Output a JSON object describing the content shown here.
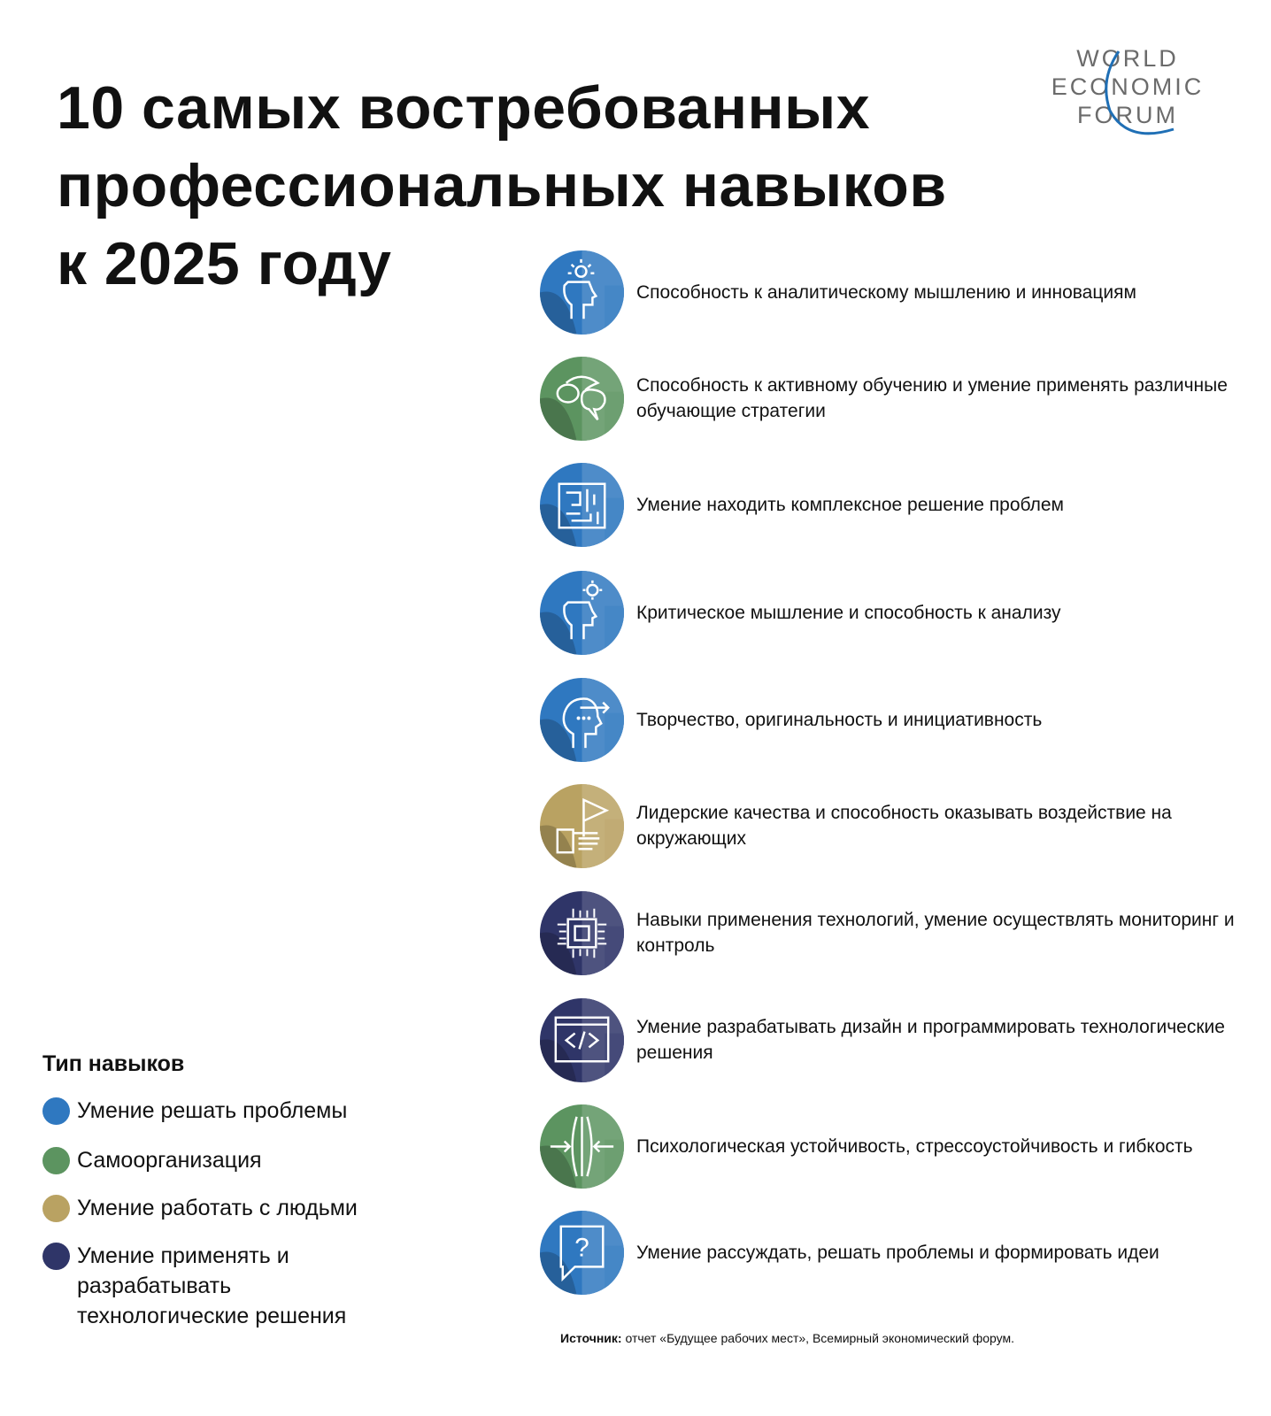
{
  "title": [
    "10 самых востребованных",
    "профессиональных навыков",
    "к 2025 году"
  ],
  "logo": {
    "lines": [
      "WORLD",
      "ECONOMIC",
      "FORUM"
    ]
  },
  "colors": {
    "problem_solving": "#2f78c0",
    "self_management": "#5c9460",
    "working_with_people": "#b9a262",
    "technology": "#2f3568"
  },
  "skills": [
    {
      "label": "Способность к аналитическому мышлению и инновациям",
      "type": "problem_solving",
      "icon": "head-lightbulb-icon"
    },
    {
      "label": "Способность к активному обучению и умение применять различные обучающие стратегии",
      "type": "self_management",
      "icon": "brain-speech-icon"
    },
    {
      "label": "Умение находить комплексное решение проблем",
      "type": "problem_solving",
      "icon": "maze-icon"
    },
    {
      "label": "Критическое мышление и способность к анализу",
      "type": "problem_solving",
      "icon": "head-gear-icon"
    },
    {
      "label": "Творчество, оригинальность и инициативность",
      "type": "problem_solving",
      "icon": "head-arrow-icon"
    },
    {
      "label": "Лидерские качества и способность оказывать воздействие на окружающих",
      "type": "working_with_people",
      "icon": "hand-flag-icon"
    },
    {
      "label": "Навыки применения технологий, умение осуществлять мониторинг и контроль",
      "type": "technology",
      "icon": "chip-icon"
    },
    {
      "label": "Умение разрабатывать дизайн и программировать технологические решения",
      "type": "technology",
      "icon": "code-window-icon"
    },
    {
      "label": "Психологическая устойчивость, стрессоустойчивость и гибкость",
      "type": "self_management",
      "icon": "arrows-resilience-icon"
    },
    {
      "label": "Умение рассуждать, решать проблемы и формировать идеи",
      "type": "problem_solving",
      "icon": "question-bubble-icon"
    }
  ],
  "legend": {
    "title": "Тип навыков",
    "items": [
      {
        "label": "Умение решать проблемы",
        "type": "problem_solving"
      },
      {
        "label": "Самоорганизация",
        "type": "self_management"
      },
      {
        "label": "Умение работать с людьми",
        "type": "working_with_people"
      },
      {
        "label": "Умение применять и разрабатывать технологические решения",
        "type": "technology"
      }
    ]
  },
  "source": {
    "label": "Источник:",
    "text": "отчет «Будущее рабочих мест», Всемирный экономический форум."
  }
}
